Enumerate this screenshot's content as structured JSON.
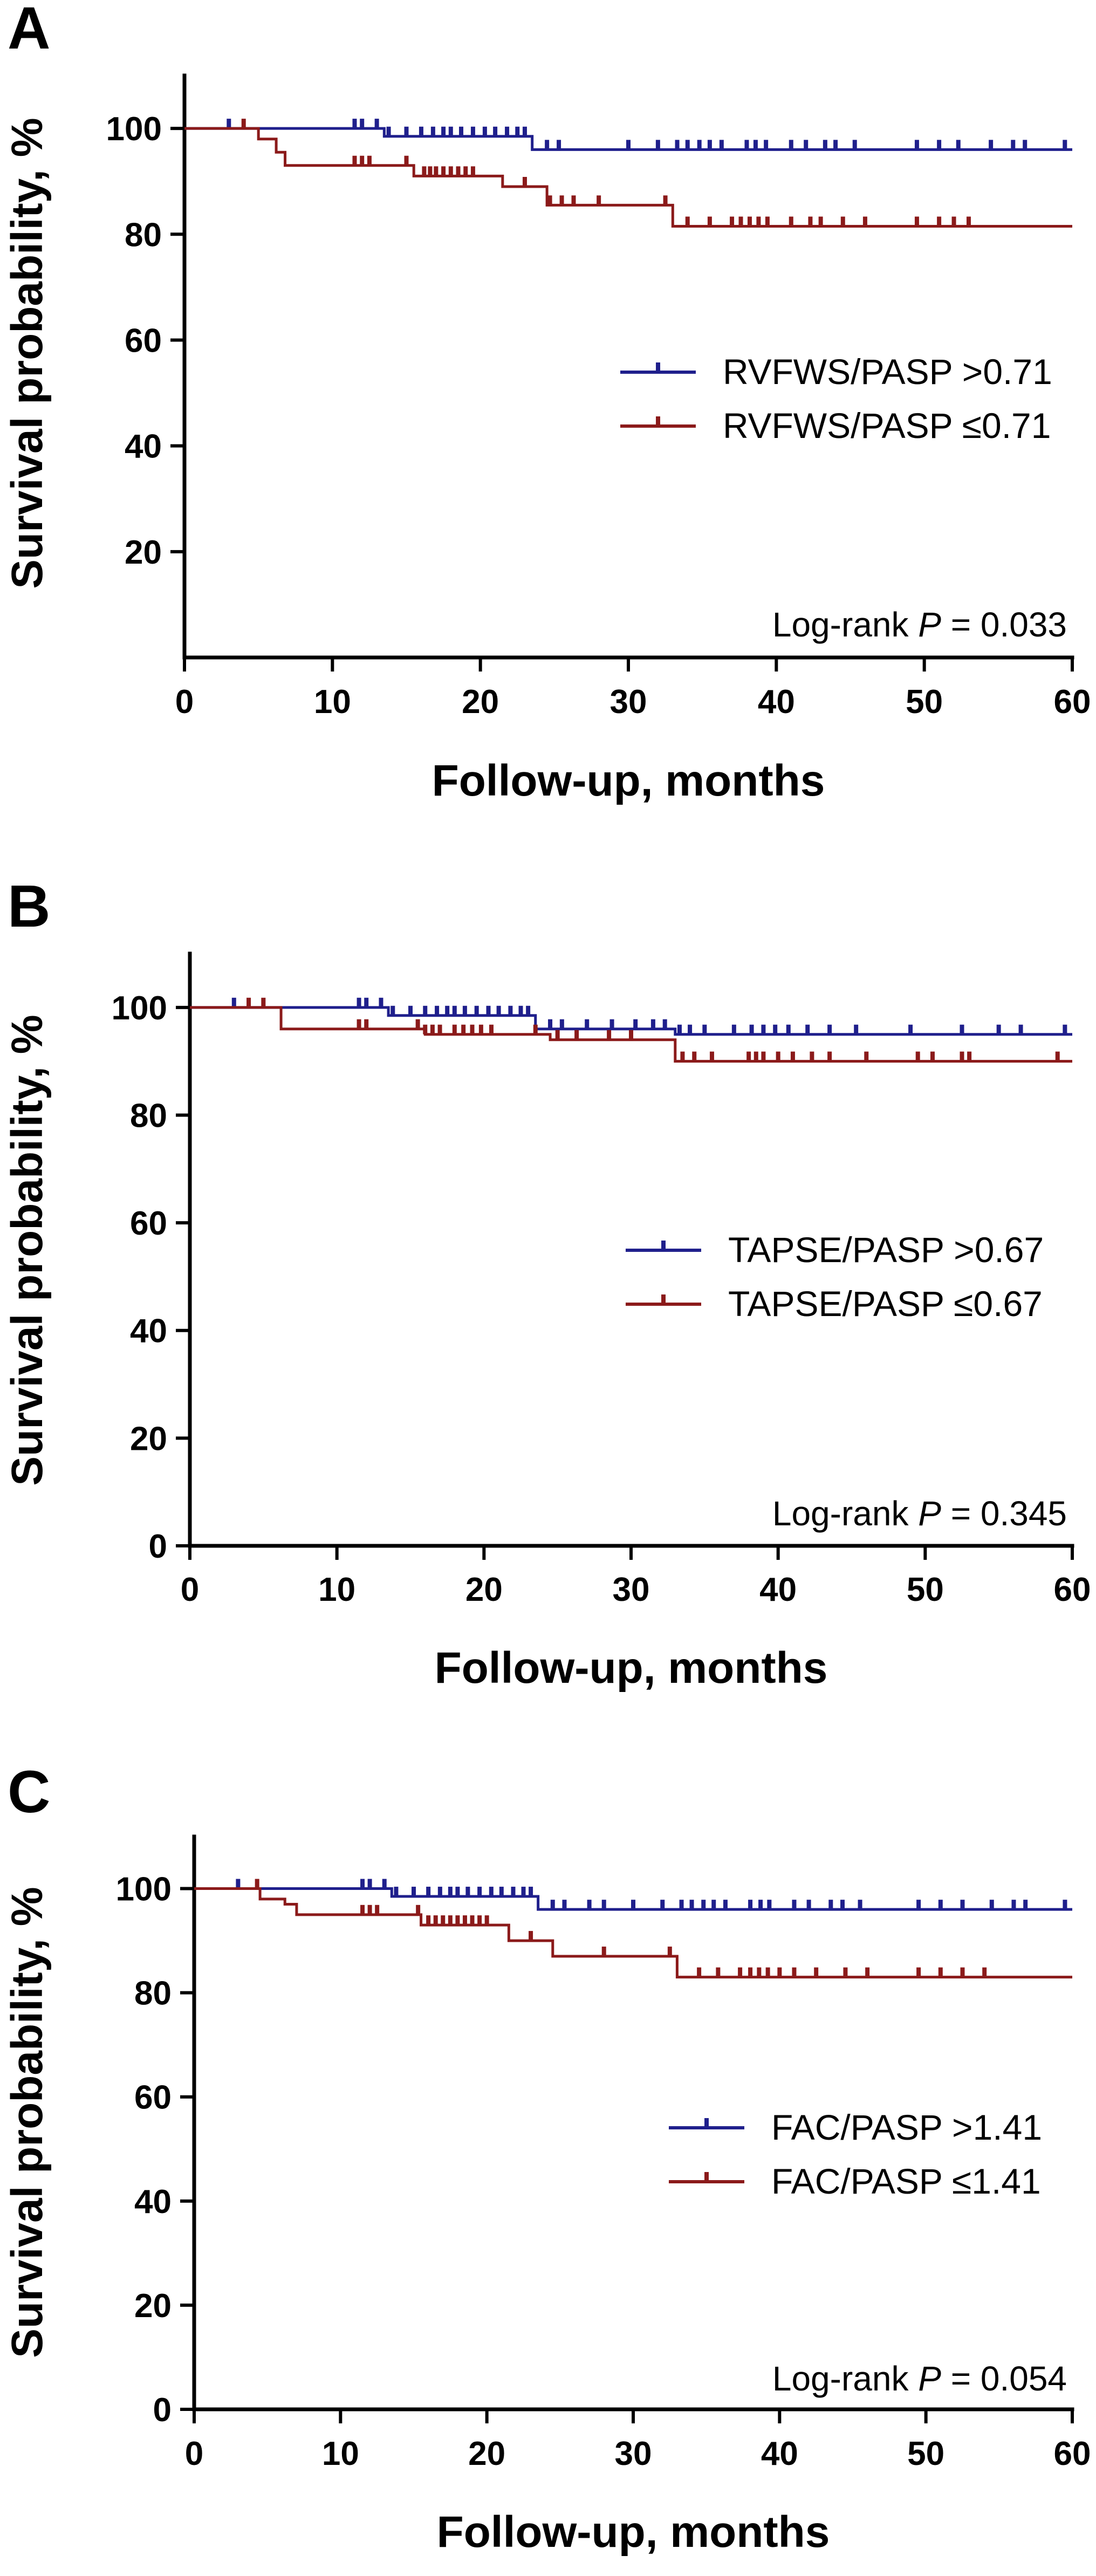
{
  "colors": {
    "high": "#1f1f8c",
    "low": "#8b1a1a",
    "axis": "#000000"
  },
  "chart_data": [
    {
      "type": "line",
      "panel_label": "A",
      "xlabel": "Follow-up, months",
      "ylabel": "Survival probability, %",
      "xlim": [
        0,
        60
      ],
      "ylim": [
        0,
        110
      ],
      "x_ticks": [
        0,
        10,
        20,
        30,
        40,
        50,
        60
      ],
      "y_ticks": [
        20,
        40,
        60,
        80,
        100
      ],
      "legend_position": "right-middle",
      "annotation": {
        "prefix": "Log-rank ",
        "p_symbol": "P",
        "value_text": " = 0.033"
      },
      "series": [
        {
          "name": "RVFWS/PASP >0.71",
          "color_key": "high",
          "steps": [
            [
              0,
              100
            ],
            [
              13.5,
              98.5
            ],
            [
              23.5,
              96
            ],
            [
              60,
              96
            ]
          ],
          "censored": [
            3,
            11.5,
            12,
            13,
            13.8,
            15,
            16,
            16.8,
            17.5,
            18,
            18.7,
            19.5,
            20.3,
            21,
            21.8,
            22.5,
            23,
            24.5,
            25.3,
            30,
            32,
            33.3,
            34,
            34.8,
            35.5,
            36.3,
            38,
            38.6,
            39.3,
            41,
            42,
            43.3,
            44,
            45.3,
            49.5,
            51,
            52.3,
            54.5,
            56,
            56.8,
            59.5
          ]
        },
        {
          "name": "RVFWS/PASP ≤0.71",
          "color_key": "low",
          "steps": [
            [
              0,
              100
            ],
            [
              5,
              98
            ],
            [
              6.2,
              95.5
            ],
            [
              6.8,
              93
            ],
            [
              15.5,
              91
            ],
            [
              21.5,
              89
            ],
            [
              24.5,
              85.5
            ],
            [
              33,
              81.5
            ],
            [
              60,
              81.5
            ]
          ],
          "censored": [
            4,
            11.5,
            12,
            12.5,
            15,
            16.2,
            16.6,
            17,
            17.5,
            18,
            18.5,
            19,
            19.5,
            23,
            24.7,
            25.5,
            26.3,
            28,
            32.5,
            34,
            35.5,
            37,
            37.6,
            38.2,
            38.8,
            39.4,
            41,
            42.3,
            43,
            44.5,
            46,
            49.5,
            51,
            52,
            53
          ]
        }
      ]
    },
    {
      "type": "line",
      "panel_label": "B",
      "xlabel": "Follow-up, months",
      "ylabel": "Survival probability, %",
      "xlim": [
        0,
        60
      ],
      "ylim": [
        0,
        110
      ],
      "x_ticks": [
        0,
        10,
        20,
        30,
        40,
        50,
        60
      ],
      "y_ticks": [
        0,
        20,
        40,
        60,
        80,
        100
      ],
      "legend_position": "right-middle",
      "annotation": {
        "prefix": "Log-rank ",
        "p_symbol": "P",
        "value_text": " = 0.345"
      },
      "series": [
        {
          "name": "TAPSE/PASP >0.67",
          "color_key": "high",
          "steps": [
            [
              0,
              100
            ],
            [
              13.5,
              98.5
            ],
            [
              23.5,
              96
            ],
            [
              33,
              95
            ],
            [
              60,
              95
            ]
          ],
          "censored": [
            3,
            11.5,
            12,
            13,
            13.8,
            15,
            16,
            16.8,
            17.5,
            18,
            18.7,
            19.5,
            20.3,
            21,
            21.8,
            22.5,
            23,
            24.5,
            25.3,
            27,
            28.7,
            30.3,
            31.5,
            32.3,
            33.3,
            34,
            35,
            37,
            38.2,
            39,
            39.8,
            40.7,
            42,
            43.5,
            45.3,
            49,
            52.5,
            55,
            56.5,
            59.5
          ]
        },
        {
          "name": "TAPSE/PASP ≤0.67",
          "color_key": "low",
          "steps": [
            [
              0,
              100
            ],
            [
              6.2,
              96
            ],
            [
              16,
              95
            ],
            [
              24.5,
              94
            ],
            [
              33,
              90
            ],
            [
              60,
              90
            ]
          ],
          "censored": [
            4,
            5,
            11.5,
            12,
            15.5,
            16,
            16.5,
            17,
            18,
            18.6,
            19.2,
            19.8,
            20.5,
            23.5,
            25,
            26.3,
            28.5,
            30,
            33.5,
            34.3,
            35.5,
            38,
            38.5,
            39,
            40,
            41,
            42.3,
            43.5,
            46,
            49.5,
            50.5,
            52.5,
            53,
            59
          ]
        }
      ]
    },
    {
      "type": "line",
      "panel_label": "C",
      "xlabel": "Follow-up, months",
      "ylabel": "Survival probability, %",
      "xlim": [
        0,
        60
      ],
      "ylim": [
        0,
        110
      ],
      "x_ticks": [
        0,
        10,
        20,
        30,
        40,
        50,
        60
      ],
      "y_ticks": [
        0,
        20,
        40,
        60,
        80,
        100
      ],
      "legend_position": "right-middle",
      "annotation": {
        "prefix": "Log-rank ",
        "p_symbol": "P",
        "value_text": " = 0.054"
      },
      "series": [
        {
          "name": "FAC/PASP >1.41",
          "color_key": "high",
          "steps": [
            [
              0,
              100
            ],
            [
              13.5,
              98.5
            ],
            [
              23.5,
              96
            ],
            [
              60,
              96
            ]
          ],
          "censored": [
            3,
            11.5,
            12,
            13,
            13.8,
            15,
            16,
            16.8,
            17.5,
            18,
            18.7,
            19.5,
            20.3,
            21,
            21.8,
            22.5,
            23,
            24.5,
            25.3,
            27,
            28,
            30,
            32,
            33.3,
            34,
            34.8,
            35.5,
            36.3,
            38,
            38.7,
            39.3,
            41,
            42,
            43.5,
            44.3,
            45.5,
            49.5,
            51,
            52.5,
            54.5,
            56,
            56.8,
            59.5
          ]
        },
        {
          "name": "FAC/PASP ≤1.41",
          "color_key": "low",
          "steps": [
            [
              0,
              100
            ],
            [
              4.5,
              98
            ],
            [
              6.2,
              97
            ],
            [
              7,
              95
            ],
            [
              15.5,
              93
            ],
            [
              21.5,
              90
            ],
            [
              24.5,
              87
            ],
            [
              33,
              83
            ],
            [
              60,
              83
            ]
          ],
          "censored": [
            4.3,
            11.5,
            12,
            12.5,
            15.3,
            16,
            16.5,
            17,
            17.5,
            18,
            18.5,
            19,
            19.5,
            20,
            23,
            28,
            32.5,
            34.5,
            35.8,
            37.3,
            38,
            38.6,
            39.2,
            40,
            41,
            42.5,
            44.5,
            46,
            49.5,
            51,
            52.5,
            54
          ]
        }
      ]
    }
  ]
}
